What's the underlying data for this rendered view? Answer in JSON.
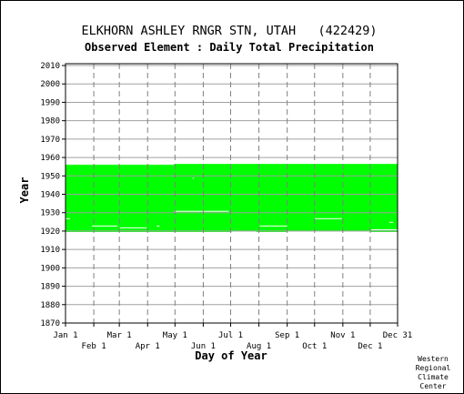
{
  "chart_data": {
    "type": "heatmap",
    "title": "ELKHORN ASHLEY RNGR STN, UTAH   (422429)",
    "subtitle": "Observed Element : Daily Total Precipitation",
    "xlabel": "Day of Year",
    "ylabel": "Year",
    "x_axis": {
      "range_day_of_year": [
        1,
        365
      ],
      "ticks_top_row": [
        {
          "label": "Jan 1",
          "day": 1
        },
        {
          "label": "Mar 1",
          "day": 60
        },
        {
          "label": "May 1",
          "day": 121
        },
        {
          "label": "Jul 1",
          "day": 182
        },
        {
          "label": "Sep 1",
          "day": 244
        },
        {
          "label": "Nov 1",
          "day": 305
        },
        {
          "label": "Dec 31",
          "day": 365
        }
      ],
      "ticks_bottom_row": [
        {
          "label": "Feb 1",
          "day": 32
        },
        {
          "label": "Apr 1",
          "day": 91
        },
        {
          "label": "Jun 1",
          "day": 152
        },
        {
          "label": "Aug 1",
          "day": 213
        },
        {
          "label": "Oct 1",
          "day": 274
        },
        {
          "label": "Dec 1",
          "day": 335
        }
      ]
    },
    "y_axis": {
      "range": [
        1870,
        2011
      ],
      "ticks": [
        2010,
        2000,
        1990,
        1980,
        1970,
        1960,
        1950,
        1940,
        1930,
        1920,
        1910,
        1900,
        1890,
        1880,
        1870
      ]
    },
    "grid": true,
    "data_color": "#00ff00",
    "data_description_ranges": {
      "main_block": {
        "day_start": 1,
        "day_end": 365,
        "year_start": 1919.5,
        "year_end": 1956.5
      },
      "gaps": [
        {
          "day_start": 1,
          "day_end": 6,
          "year_start": 1926.5,
          "year_end": 1927
        },
        {
          "day_start": 30,
          "day_end": 58,
          "year_start": 1922.5,
          "year_end": 1923
        },
        {
          "day_start": 60,
          "day_end": 90,
          "year_start": 1921.5,
          "year_end": 1922
        },
        {
          "day_start": 101,
          "day_end": 104,
          "year_start": 1922.5,
          "year_end": 1923
        },
        {
          "day_start": 120,
          "day_end": 180,
          "year_start": 1930.5,
          "year_end": 1931
        },
        {
          "day_start": 140,
          "day_end": 142,
          "year_start": 1948.5,
          "year_end": 1949
        },
        {
          "day_start": 214,
          "day_end": 244,
          "year_start": 1922.5,
          "year_end": 1923
        },
        {
          "day_start": 274,
          "day_end": 304,
          "year_start": 1926.5,
          "year_end": 1927
        },
        {
          "day_start": 356,
          "day_end": 360,
          "year_start": 1924.5,
          "year_end": 1925
        }
      ],
      "edge_notches": [
        {
          "day_start": 1,
          "day_end": 120,
          "year_start": 1956,
          "year_end": 1956.5
        },
        {
          "day_start": 183,
          "day_end": 210,
          "year_start": 1919.5,
          "year_end": 1920
        },
        {
          "day_start": 244,
          "day_end": 335,
          "year_start": 1919.5,
          "year_end": 1920
        },
        {
          "day_start": 336,
          "day_end": 365,
          "year_start": 1920.5,
          "year_end": 1921
        }
      ]
    }
  },
  "credit": {
    "line1": "Western",
    "line2": "Regional",
    "line3": "Climate",
    "line4": "Center"
  }
}
